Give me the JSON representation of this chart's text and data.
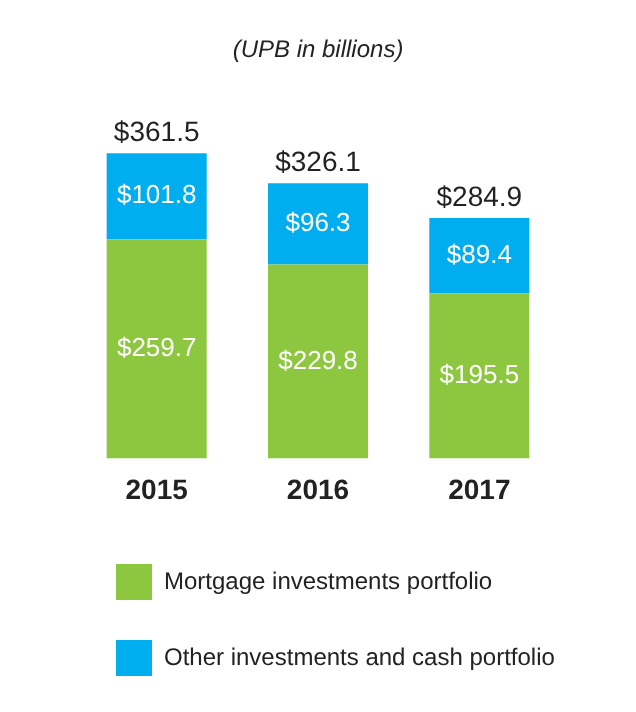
{
  "chart_data": {
    "type": "bar",
    "subtitle": "(UPB in billions)",
    "categories": [
      "2015",
      "2016",
      "2017"
    ],
    "stacked": true,
    "series": [
      {
        "name": "Mortgage investments portfolio",
        "color": "#8dc63f",
        "values": [
          259.7,
          229.8,
          195.5
        ],
        "value_labels": [
          "$259.7",
          "$229.8",
          "$195.5"
        ]
      },
      {
        "name": "Other investments and cash portfolio",
        "color": "#00aeef",
        "values": [
          101.8,
          96.3,
          89.4
        ],
        "value_labels": [
          "$101.8",
          "$96.3",
          "$89.4"
        ]
      }
    ],
    "totals": [
      "$361.5",
      "$326.1",
      "$284.9"
    ],
    "grid": false,
    "legend": "bottom"
  }
}
